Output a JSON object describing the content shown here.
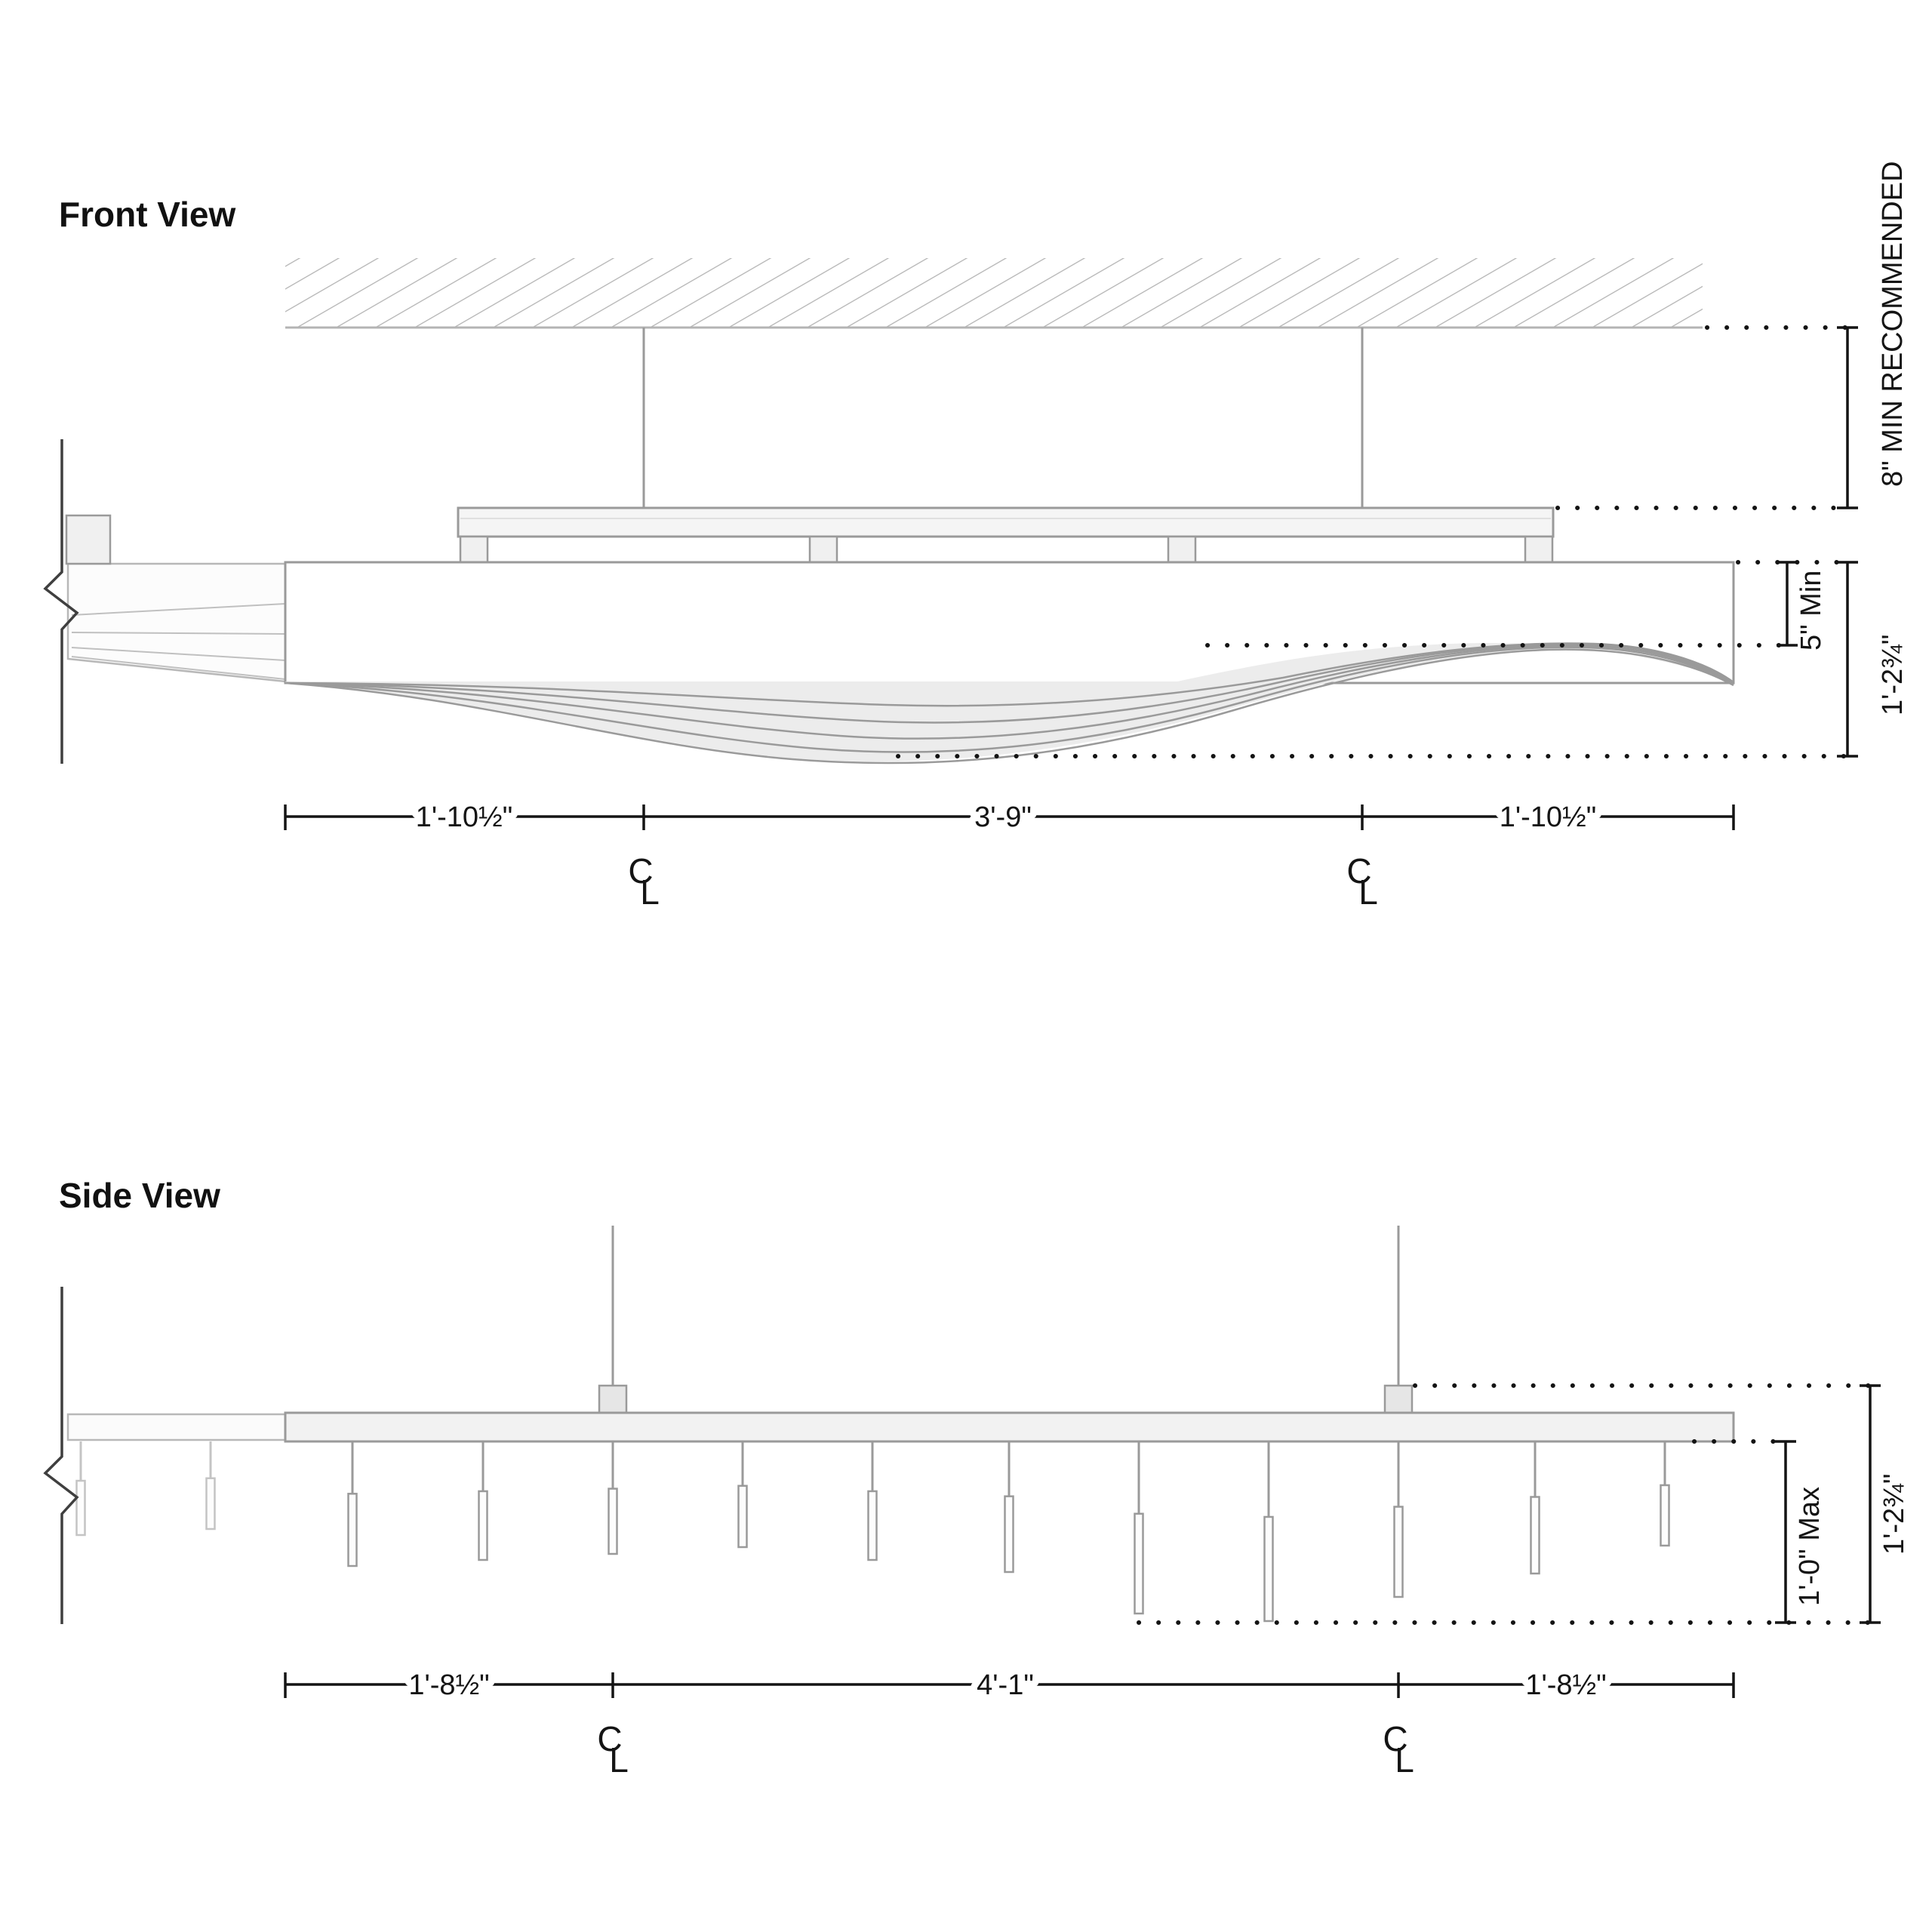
{
  "front_view": {
    "title": "Front View",
    "bottom_dims": {
      "left": "1'-10½\"",
      "center": "3'-9\"",
      "right": "1'-10½\""
    },
    "right_dims": {
      "suspension": "8\" MIN RECOMMENDED",
      "body_min": "5\" Min",
      "body_total": "1'-2¾\""
    }
  },
  "side_view": {
    "title": "Side View",
    "bottom_dims": {
      "left": "1'-8½\"",
      "center": "4'-1\"",
      "right": "1'-8½\""
    },
    "right_dims": {
      "drop_max": "1'-0\" Max",
      "total": "1'-2¾\""
    }
  },
  "symbols": {
    "centerline_c": "C",
    "centerline_l": "L"
  },
  "colors": {
    "drawing_gray": "#9a9a9a",
    "hatch_gray": "#b4b4b4",
    "dim_black": "#141414",
    "fill_light": "#ececec"
  }
}
